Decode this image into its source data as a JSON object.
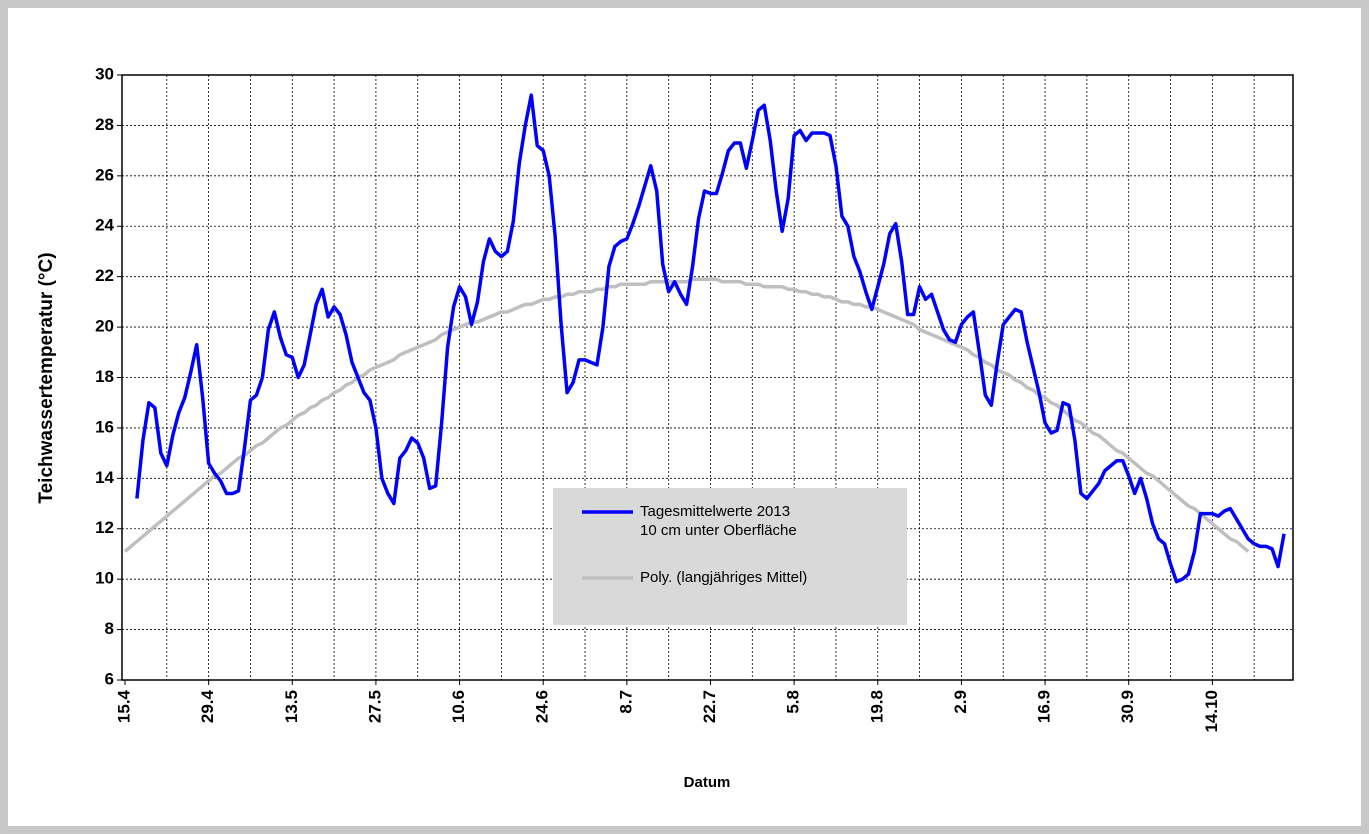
{
  "chart_data": {
    "type": "line",
    "ylabel": "Teichwassertemperatur (°C)",
    "xlabel": "Datum",
    "ylim": [
      6,
      30
    ],
    "yticks": [
      6,
      8,
      10,
      12,
      14,
      16,
      18,
      20,
      22,
      24,
      26,
      28,
      30
    ],
    "grid": true,
    "categories": [
      "15.4",
      null,
      null,
      null,
      null,
      null,
      null,
      null,
      null,
      null,
      null,
      null,
      null,
      null,
      "29.4",
      null,
      null,
      null,
      null,
      null,
      null,
      null,
      null,
      null,
      null,
      null,
      null,
      null,
      "13.5",
      null,
      null,
      null,
      null,
      null,
      null,
      null,
      null,
      null,
      null,
      null,
      null,
      null,
      "27.5",
      null,
      null,
      null,
      null,
      null,
      null,
      null,
      null,
      null,
      null,
      null,
      null,
      null,
      "10.6",
      null,
      null,
      null,
      null,
      null,
      null,
      null,
      null,
      null,
      null,
      null,
      null,
      null,
      "24.6",
      null,
      null,
      null,
      null,
      null,
      null,
      null,
      null,
      null,
      null,
      null,
      null,
      null,
      "8.7",
      null,
      null,
      null,
      null,
      null,
      null,
      null,
      null,
      null,
      null,
      null,
      null,
      null,
      "22.7",
      null,
      null,
      null,
      null,
      null,
      null,
      null,
      null,
      null,
      null,
      null,
      null,
      null,
      "5.8",
      null,
      null,
      null,
      null,
      null,
      null,
      null,
      null,
      null,
      null,
      null,
      null,
      null,
      "19.8",
      null,
      null,
      null,
      null,
      null,
      null,
      null,
      null,
      null,
      null,
      null,
      null,
      null,
      "2.9",
      null,
      null,
      null,
      null,
      null,
      null,
      null,
      null,
      null,
      null,
      null,
      null,
      null,
      "16.9",
      null,
      null,
      null,
      null,
      null,
      null,
      null,
      null,
      null,
      null,
      null,
      null,
      null,
      "30.9",
      null,
      null,
      null,
      null,
      null,
      null,
      null,
      null,
      null,
      null,
      null,
      null,
      null,
      "14.10",
      null,
      null,
      null,
      null,
      null,
      null,
      null,
      null,
      null,
      null,
      null,
      null,
      null
    ],
    "series": [
      {
        "name": "Tagesmittelwerte 2013\n10 cm unter Oberfläche",
        "color": "#0000ff",
        "values": [
          null,
          null,
          13.2,
          15.5,
          17.0,
          16.8,
          15.0,
          14.5,
          15.7,
          16.6,
          17.2,
          18.2,
          19.3,
          17.2,
          14.6,
          14.2,
          13.9,
          13.4,
          13.4,
          13.5,
          15.2,
          17.1,
          17.3,
          18.0,
          19.9,
          20.6,
          19.6,
          18.9,
          18.8,
          18.0,
          18.5,
          19.7,
          20.9,
          21.5,
          20.4,
          20.8,
          20.5,
          19.7,
          18.6,
          18.0,
          17.4,
          17.1,
          16.0,
          14.0,
          13.4,
          13.0,
          14.8,
          15.1,
          15.6,
          15.4,
          14.8,
          13.6,
          13.7,
          16.2,
          19.2,
          20.8,
          21.6,
          21.2,
          20.1,
          21.0,
          22.6,
          23.5,
          23.0,
          22.8,
          23.0,
          24.2,
          26.5,
          28.0,
          29.2,
          27.2,
          27.0,
          26.0,
          23.6,
          20.1,
          17.4,
          17.8,
          18.7,
          18.7,
          18.6,
          18.5,
          20.0,
          22.4,
          23.2,
          23.4,
          23.5,
          24.1,
          24.8,
          25.6,
          26.4,
          25.4,
          22.5,
          21.4,
          21.8,
          21.3,
          20.9,
          22.4,
          24.3,
          25.4,
          25.3,
          25.3,
          26.1,
          27.0,
          27.3,
          27.3,
          26.3,
          27.4,
          28.6,
          28.8,
          27.4,
          25.4,
          23.8,
          25.1,
          27.6,
          27.8,
          27.4,
          27.7,
          27.7,
          27.7,
          27.6,
          26.4,
          24.4,
          24.0,
          22.8,
          22.2,
          21.4,
          20.7,
          21.6,
          22.5,
          23.7,
          24.1,
          22.6,
          20.5,
          20.5,
          21.6,
          21.1,
          21.3,
          20.6,
          19.9,
          19.5,
          19.4,
          20.1,
          20.4,
          20.6,
          19.0,
          17.3,
          16.9,
          18.6,
          20.1,
          20.4,
          20.7,
          20.6,
          19.4,
          18.4,
          17.4,
          16.2,
          15.8,
          15.9,
          17.0,
          16.9,
          15.5,
          13.4,
          13.2,
          13.5,
          13.8,
          14.3,
          14.5,
          14.7,
          14.7,
          14.1,
          13.4,
          14.0,
          13.2,
          12.2,
          11.6,
          11.4,
          10.6,
          9.9,
          10.0,
          10.2,
          11.1,
          12.6,
          12.6,
          12.6,
          12.5,
          12.7,
          12.8,
          12.4,
          12.0,
          11.6,
          11.4,
          11.3,
          11.3,
          11.2,
          10.5,
          11.8,
          null
        ]
      },
      {
        "name": "Poly. (langjähriges Mittel)",
        "color": "#bfbfbf",
        "values": [
          11.1,
          11.3,
          11.5,
          11.7,
          11.9,
          12.1,
          12.3,
          12.5,
          12.7,
          12.9,
          13.1,
          13.3,
          13.5,
          13.7,
          13.9,
          14.1,
          14.2,
          14.4,
          14.6,
          14.8,
          14.9,
          15.1,
          15.3,
          15.4,
          15.6,
          15.8,
          16.0,
          16.1,
          16.3,
          16.5,
          16.6,
          16.8,
          16.9,
          17.1,
          17.2,
          17.4,
          17.5,
          17.7,
          17.8,
          18.0,
          18.1,
          18.3,
          18.4,
          18.5,
          18.6,
          18.7,
          18.9,
          19.0,
          19.1,
          19.2,
          19.3,
          19.4,
          19.5,
          19.7,
          19.8,
          19.9,
          20.0,
          20.1,
          20.2,
          20.2,
          20.3,
          20.4,
          20.5,
          20.6,
          20.6,
          20.7,
          20.8,
          20.9,
          20.9,
          21.0,
          21.1,
          21.1,
          21.2,
          21.2,
          21.3,
          21.3,
          21.4,
          21.4,
          21.4,
          21.5,
          21.5,
          21.6,
          21.6,
          21.7,
          21.7,
          21.7,
          21.7,
          21.7,
          21.8,
          21.8,
          21.8,
          21.8,
          21.8,
          21.8,
          21.8,
          21.9,
          21.9,
          21.9,
          21.9,
          21.9,
          21.8,
          21.8,
          21.8,
          21.8,
          21.7,
          21.7,
          21.7,
          21.6,
          21.6,
          21.6,
          21.6,
          21.5,
          21.5,
          21.4,
          21.4,
          21.3,
          21.3,
          21.2,
          21.2,
          21.1,
          21.0,
          21.0,
          20.9,
          20.9,
          20.8,
          20.8,
          20.7,
          20.6,
          20.5,
          20.4,
          20.3,
          20.2,
          20.1,
          19.9,
          19.8,
          19.7,
          19.6,
          19.5,
          19.4,
          19.3,
          19.2,
          19.1,
          18.9,
          18.8,
          18.6,
          18.5,
          18.3,
          18.2,
          18.1,
          17.9,
          17.8,
          17.6,
          17.5,
          17.3,
          17.2,
          17.0,
          16.9,
          16.7,
          16.5,
          16.3,
          16.2,
          16.0,
          15.8,
          15.7,
          15.5,
          15.3,
          15.1,
          15.0,
          14.8,
          14.6,
          14.4,
          14.2,
          14.1,
          13.9,
          13.7,
          13.5,
          13.3,
          13.1,
          12.9,
          12.8,
          12.6,
          12.4,
          12.2,
          12.0,
          11.8,
          11.6,
          11.5,
          11.3,
          11.1,
          null,
          null,
          null,
          null,
          null,
          null,
          null
        ]
      }
    ]
  }
}
